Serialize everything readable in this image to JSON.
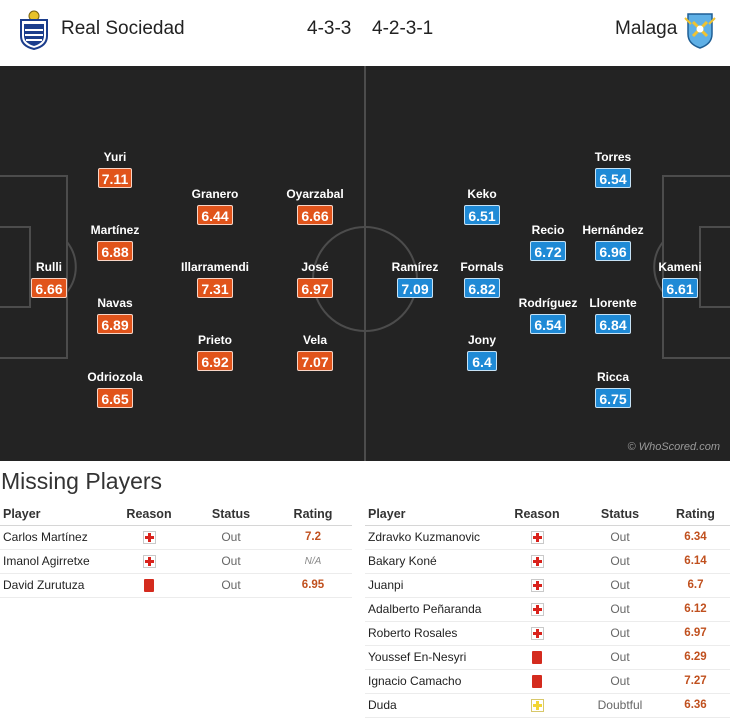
{
  "header": {
    "home_team": "Real Sociedad",
    "away_team": "Malaga",
    "home_formation": "4-3-3",
    "away_formation": "4-2-3-1"
  },
  "colors": {
    "home_rating": "#e1541b",
    "away_rating": "#1f8ad6",
    "pitch": "#232323"
  },
  "pitch": {
    "credit": "© WhoScored.com",
    "home_players": [
      {
        "name": "Rulli",
        "rating": "6.66"
      },
      {
        "name": "Yuri",
        "rating": "7.11"
      },
      {
        "name": "Martínez",
        "rating": "6.88"
      },
      {
        "name": "Navas",
        "rating": "6.89"
      },
      {
        "name": "Odriozola",
        "rating": "6.65"
      },
      {
        "name": "Granero",
        "rating": "6.44"
      },
      {
        "name": "Illarramendi",
        "rating": "7.31"
      },
      {
        "name": "Prieto",
        "rating": "6.92"
      },
      {
        "name": "Oyarzabal",
        "rating": "6.66"
      },
      {
        "name": "José",
        "rating": "6.97"
      },
      {
        "name": "Vela",
        "rating": "7.07"
      }
    ],
    "away_players": [
      {
        "name": "Ramírez",
        "rating": "7.09"
      },
      {
        "name": "Keko",
        "rating": "6.51"
      },
      {
        "name": "Fornals",
        "rating": "6.82"
      },
      {
        "name": "Jony",
        "rating": "6.4"
      },
      {
        "name": "Recio",
        "rating": "6.72"
      },
      {
        "name": "Rodríguez",
        "rating": "6.54"
      },
      {
        "name": "Torres",
        "rating": "6.54"
      },
      {
        "name": "Hernández",
        "rating": "6.96"
      },
      {
        "name": "Llorente",
        "rating": "6.84"
      },
      {
        "name": "Ricca",
        "rating": "6.75"
      },
      {
        "name": "Kameni",
        "rating": "6.61"
      }
    ]
  },
  "missing": {
    "title": "Missing Players",
    "headers": {
      "player": "Player",
      "reason": "Reason",
      "status": "Status",
      "rating": "Rating"
    },
    "home": [
      {
        "player": "Carlos Martínez",
        "reason": "injury",
        "status": "Out",
        "rating": "7.2"
      },
      {
        "player": "Imanol Agirretxe",
        "reason": "injury",
        "status": "Out",
        "rating": "N/A"
      },
      {
        "player": "David Zurutuza",
        "reason": "red-card",
        "status": "Out",
        "rating": "6.95"
      }
    ],
    "away": [
      {
        "player": "Zdravko Kuzmanovic",
        "reason": "injury",
        "status": "Out",
        "rating": "6.34"
      },
      {
        "player": "Bakary Koné",
        "reason": "injury",
        "status": "Out",
        "rating": "6.14"
      },
      {
        "player": "Juanpi",
        "reason": "injury",
        "status": "Out",
        "rating": "6.7"
      },
      {
        "player": "Adalberto Peñaranda",
        "reason": "injury",
        "status": "Out",
        "rating": "6.12"
      },
      {
        "player": "Roberto Rosales",
        "reason": "injury",
        "status": "Out",
        "rating": "6.97"
      },
      {
        "player": "Youssef En-Nesyri",
        "reason": "red-card",
        "status": "Out",
        "rating": "6.29"
      },
      {
        "player": "Ignacio Camacho",
        "reason": "red-card",
        "status": "Out",
        "rating": "7.27"
      },
      {
        "player": "Duda",
        "reason": "doubtful",
        "status": "Doubtful",
        "rating": "6.36"
      }
    ]
  }
}
